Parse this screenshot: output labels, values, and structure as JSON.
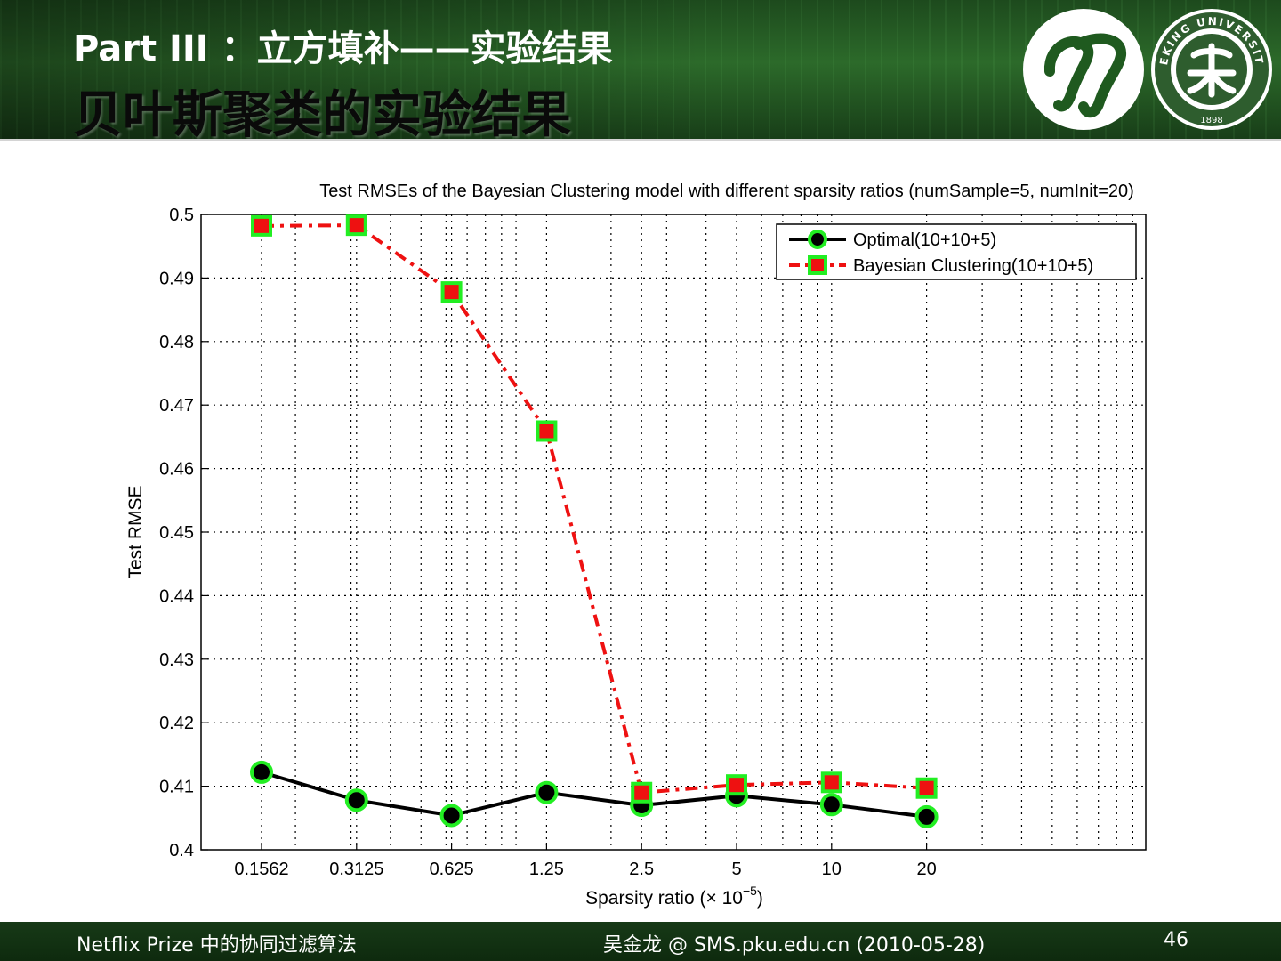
{
  "header": {
    "subtitle": "Part III ：立方填补——实验结果",
    "title": "贝叶斯聚类的实验结果",
    "logo_text": "PEKING UNIVERSITY",
    "logo_year": "1898"
  },
  "footer": {
    "left": "Netflix Prize 中的协同过滤算法",
    "middle": "吴金龙 @ SMS.pku.edu.cn (2010-05-28)",
    "page": "46"
  },
  "colors": {
    "optimal_line": "#000000",
    "bayesian_line": "#ee1111",
    "marker_edge": "#22ee22",
    "header_green": "#2c6a2a"
  },
  "chart_data": {
    "type": "line",
    "title": "Test RMSEs of the Bayesian Clustering model with different sparsity ratios (numSample=5, numInit=20)",
    "xlabel": "Sparsity ratio (× 10",
    "xlabel_exponent": "−5",
    "xlabel_close": ")",
    "ylabel": "Test RMSE",
    "categories": [
      "0.1562",
      "0.3125",
      "0.625",
      "1.25",
      "2.5",
      "5",
      "10",
      "20"
    ],
    "x_scale": "log2",
    "ylim": [
      0.4,
      0.5
    ],
    "yticks": [
      "0.4",
      "0.41",
      "0.42",
      "0.43",
      "0.44",
      "0.45",
      "0.46",
      "0.47",
      "0.48",
      "0.49",
      "0.5"
    ],
    "grid": true,
    "legend_position": "top-right",
    "series": [
      {
        "name": "Optimal(10+10+5)",
        "style": "solid",
        "marker": "circle",
        "values": [
          0.4122,
          0.4078,
          0.4054,
          0.409,
          0.407,
          0.4085,
          0.4071,
          0.4052
        ]
      },
      {
        "name": "Bayesian Clustering(10+10+5)",
        "style": "dash-dot",
        "marker": "square",
        "values": [
          0.4982,
          0.4983,
          0.4878,
          0.4659,
          0.409,
          0.4102,
          0.4106,
          0.4097
        ]
      }
    ]
  }
}
